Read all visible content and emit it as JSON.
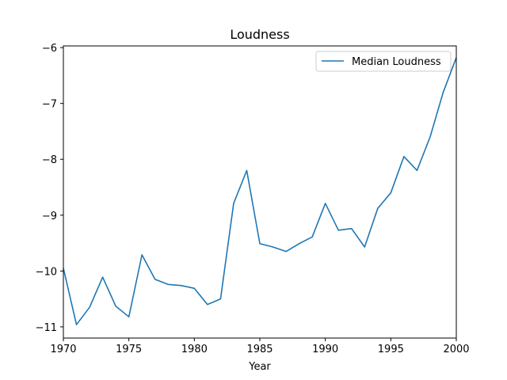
{
  "chart_data": {
    "type": "line",
    "title": "Loudness",
    "xlabel": "Year",
    "ylabel": "",
    "xlim": [
      1970,
      2000
    ],
    "ylim": [
      -11.2,
      -5.97
    ],
    "xticks": [
      1970,
      1975,
      1980,
      1985,
      1990,
      1995,
      2000
    ],
    "yticks": [
      -11,
      -10,
      -9,
      -8,
      -7,
      -6
    ],
    "ytick_labels": [
      "−11",
      "−10",
      "−9",
      "−8",
      "−7",
      "−6"
    ],
    "grid": false,
    "legend_position": "top-right",
    "series": [
      {
        "name": "Median Loudness",
        "color": "#1f77b4",
        "x": [
          1970,
          1971,
          1972,
          1973,
          1974,
          1975,
          1976,
          1977,
          1978,
          1979,
          1980,
          1981,
          1982,
          1983,
          1984,
          1985,
          1986,
          1987,
          1988,
          1989,
          1990,
          1991,
          1992,
          1993,
          1994,
          1995,
          1996,
          1997,
          1998,
          1999,
          2000
        ],
        "values": [
          -9.95,
          -10.96,
          -10.65,
          -10.11,
          -10.63,
          -10.82,
          -9.71,
          -10.15,
          -10.24,
          -10.26,
          -10.31,
          -10.6,
          -10.5,
          -8.79,
          -8.2,
          -9.51,
          -9.57,
          -9.65,
          -9.51,
          -9.39,
          -8.79,
          -9.27,
          -9.24,
          -9.57,
          -8.88,
          -8.6,
          -7.95,
          -8.2,
          -7.6,
          -6.8,
          -6.18
        ]
      }
    ]
  }
}
